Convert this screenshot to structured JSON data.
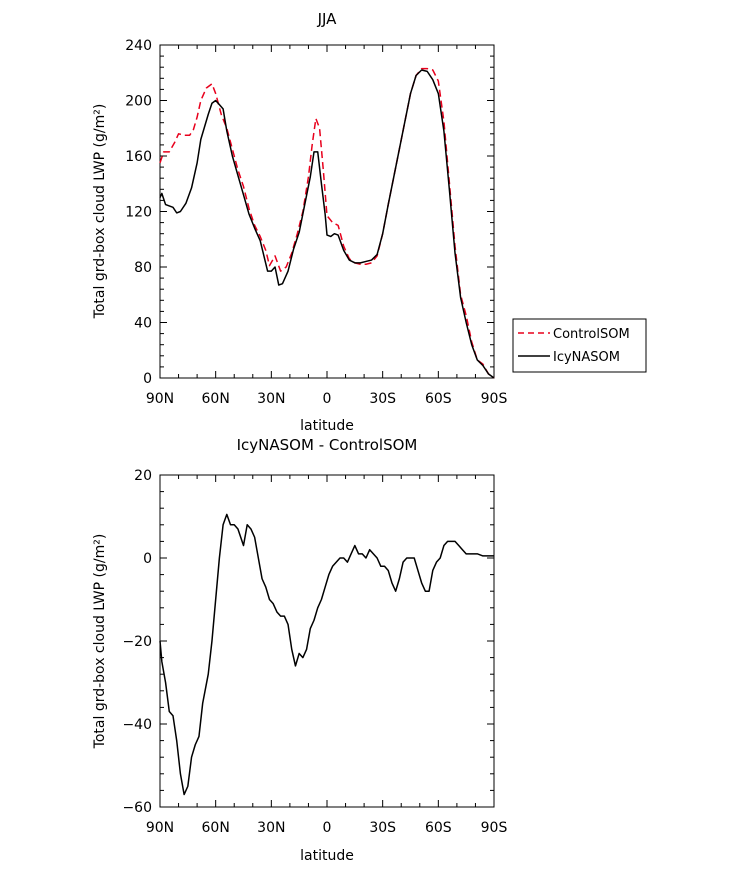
{
  "chart_data": [
    {
      "type": "line",
      "title": "JJA",
      "xlabel": "latitude",
      "ylabel": "Total grd-box cloud LWP (g/m²)",
      "x_tick_labels": [
        "90N",
        "60N",
        "30N",
        "0",
        "30S",
        "60S",
        "90S"
      ],
      "x_tick_values": [
        90,
        60,
        30,
        0,
        -30,
        -60,
        -90
      ],
      "xlim": [
        90,
        -90
      ],
      "ylim": [
        0,
        240
      ],
      "y_ticks": [
        0,
        40,
        80,
        120,
        160,
        200,
        240
      ],
      "grid": false,
      "legend_placement": "right-outside",
      "series": [
        {
          "name": "ControlSOM",
          "color": "#e8001c",
          "dash": "dashed",
          "points": [
            [
              90,
              155
            ],
            [
              88,
              163
            ],
            [
              85,
              163
            ],
            [
              82,
              170
            ],
            [
              80,
              176
            ],
            [
              77,
              175
            ],
            [
              74,
              175
            ],
            [
              72,
              179
            ],
            [
              70,
              188
            ],
            [
              68,
              200
            ],
            [
              65,
              209
            ],
            [
              62,
              212
            ],
            [
              60,
              205
            ],
            [
              57,
              190
            ],
            [
              54,
              180
            ],
            [
              51,
              165
            ],
            [
              48,
              150
            ],
            [
              45,
              138
            ],
            [
              42,
              122
            ],
            [
              39,
              110
            ],
            [
              36,
              102
            ],
            [
              33,
              92
            ],
            [
              31,
              81
            ],
            [
              28,
              88
            ],
            [
              25,
              77
            ],
            [
              22,
              80
            ],
            [
              19,
              90
            ],
            [
              16,
              104
            ],
            [
              13,
              120
            ],
            [
              10,
              145
            ],
            [
              8,
              168
            ],
            [
              6,
              187
            ],
            [
              4,
              180
            ],
            [
              2,
              150
            ],
            [
              0,
              117
            ],
            [
              -3,
              112
            ],
            [
              -6,
              110
            ],
            [
              -9,
              95
            ],
            [
              -12,
              86
            ],
            [
              -15,
              83
            ],
            [
              -18,
              82
            ],
            [
              -21,
              82
            ],
            [
              -24,
              83
            ],
            [
              -27,
              88
            ],
            [
              -30,
              104
            ],
            [
              -33,
              125
            ],
            [
              -36,
              145
            ],
            [
              -39,
              165
            ],
            [
              -42,
              185
            ],
            [
              -45,
              205
            ],
            [
              -48,
              218
            ],
            [
              -51,
              223
            ],
            [
              -54,
              223
            ],
            [
              -57,
              222
            ],
            [
              -60,
              214
            ],
            [
              -63,
              185
            ],
            [
              -66,
              140
            ],
            [
              -69,
              95
            ],
            [
              -72,
              60
            ],
            [
              -75,
              45
            ],
            [
              -78,
              26
            ],
            [
              -81,
              13
            ],
            [
              -84,
              10
            ],
            [
              -87,
              3
            ],
            [
              -90,
              0
            ]
          ]
        },
        {
          "name": "IcyNASOM",
          "color": "#000000",
          "dash": "solid",
          "points": [
            [
              90,
              130
            ],
            [
              89,
              133
            ],
            [
              87,
              125
            ],
            [
              85,
              124
            ],
            [
              83,
              123
            ],
            [
              81,
              119
            ],
            [
              79,
              120
            ],
            [
              76,
              126
            ],
            [
              73,
              137
            ],
            [
              70,
              155
            ],
            [
              68,
              172
            ],
            [
              66,
              181
            ],
            [
              64,
              190
            ],
            [
              62,
              198
            ],
            [
              60,
              200
            ],
            [
              58,
              197
            ],
            [
              56,
              194
            ],
            [
              54,
              178
            ],
            [
              51,
              160
            ],
            [
              48,
              146
            ],
            [
              45,
              132
            ],
            [
              42,
              118
            ],
            [
              39,
              108
            ],
            [
              36,
              99
            ],
            [
              34,
              88
            ],
            [
              32,
              77
            ],
            [
              30,
              77
            ],
            [
              28,
              80
            ],
            [
              26,
              67
            ],
            [
              24,
              68
            ],
            [
              21,
              77
            ],
            [
              18,
              93
            ],
            [
              15,
              105
            ],
            [
              12,
              125
            ],
            [
              9,
              145
            ],
            [
              7,
              163
            ],
            [
              5,
              163
            ],
            [
              3,
              140
            ],
            [
              1,
              118
            ],
            [
              0,
              103
            ],
            [
              -2,
              102
            ],
            [
              -4,
              104
            ],
            [
              -6,
              103
            ],
            [
              -9,
              92
            ],
            [
              -12,
              85
            ],
            [
              -15,
              83
            ],
            [
              -18,
              83
            ],
            [
              -21,
              84
            ],
            [
              -24,
              85
            ],
            [
              -27,
              89
            ],
            [
              -30,
              104
            ],
            [
              -33,
              125
            ],
            [
              -36,
              145
            ],
            [
              -39,
              165
            ],
            [
              -42,
              185
            ],
            [
              -45,
              205
            ],
            [
              -48,
              218
            ],
            [
              -51,
              222
            ],
            [
              -54,
              221
            ],
            [
              -57,
              215
            ],
            [
              -60,
              205
            ],
            [
              -63,
              178
            ],
            [
              -66,
              135
            ],
            [
              -69,
              90
            ],
            [
              -72,
              58
            ],
            [
              -75,
              40
            ],
            [
              -78,
              24
            ],
            [
              -81,
              13
            ],
            [
              -84,
              9
            ],
            [
              -87,
              3
            ],
            [
              -90,
              0
            ]
          ]
        }
      ]
    },
    {
      "type": "line",
      "title": "IcyNASOM - ControlSOM",
      "xlabel": "latitude",
      "ylabel": "Total grd-box cloud LWP (g/m²)",
      "x_tick_labels": [
        "90N",
        "60N",
        "30N",
        "0",
        "30S",
        "60S",
        "90S"
      ],
      "x_tick_values": [
        90,
        60,
        30,
        0,
        -30,
        -60,
        -90
      ],
      "xlim": [
        90,
        -90
      ],
      "ylim": [
        -60,
        20
      ],
      "y_ticks": [
        -60,
        -40,
        -20,
        0,
        20
      ],
      "grid": false,
      "series": [
        {
          "color": "#000000",
          "dash": "solid",
          "points": [
            [
              90,
              -20
            ],
            [
              89,
              -25
            ],
            [
              87,
              -30
            ],
            [
              85,
              -37
            ],
            [
              83,
              -38
            ],
            [
              81,
              -44
            ],
            [
              79,
              -52
            ],
            [
              77,
              -57
            ],
            [
              75,
              -55
            ],
            [
              73,
              -48
            ],
            [
              71,
              -45
            ],
            [
              69,
              -43
            ],
            [
              67,
              -35
            ],
            [
              64,
              -28
            ],
            [
              62,
              -20
            ],
            [
              60,
              -10
            ],
            [
              58,
              0
            ],
            [
              56,
              8
            ],
            [
              54,
              10.5
            ],
            [
              52,
              8
            ],
            [
              50,
              8
            ],
            [
              48,
              7
            ],
            [
              45,
              3
            ],
            [
              43,
              8
            ],
            [
              41,
              7
            ],
            [
              39,
              5
            ],
            [
              37,
              0
            ],
            [
              35,
              -5
            ],
            [
              33,
              -7
            ],
            [
              31,
              -10
            ],
            [
              29,
              -11
            ],
            [
              27,
              -13
            ],
            [
              25,
              -14
            ],
            [
              23,
              -14
            ],
            [
              21,
              -16
            ],
            [
              19,
              -22
            ],
            [
              17,
              -26
            ],
            [
              15,
              -23
            ],
            [
              13,
              -24
            ],
            [
              11,
              -22
            ],
            [
              9,
              -17
            ],
            [
              7,
              -15
            ],
            [
              5,
              -12
            ],
            [
              3,
              -10
            ],
            [
              1,
              -7
            ],
            [
              -1,
              -4
            ],
            [
              -3,
              -2
            ],
            [
              -5,
              -1
            ],
            [
              -7,
              0
            ],
            [
              -9,
              0
            ],
            [
              -11,
              -1
            ],
            [
              -13,
              1
            ],
            [
              -15,
              3
            ],
            [
              -17,
              1
            ],
            [
              -19,
              1
            ],
            [
              -21,
              0
            ],
            [
              -23,
              2
            ],
            [
              -25,
              1
            ],
            [
              -27,
              0
            ],
            [
              -29,
              -2
            ],
            [
              -31,
              -2
            ],
            [
              -33,
              -3
            ],
            [
              -35,
              -6
            ],
            [
              -37,
              -8
            ],
            [
              -39,
              -5
            ],
            [
              -41,
              -1
            ],
            [
              -43,
              0
            ],
            [
              -45,
              0
            ],
            [
              -47,
              0
            ],
            [
              -49,
              -3
            ],
            [
              -51,
              -6
            ],
            [
              -53,
              -8
            ],
            [
              -55,
              -8
            ],
            [
              -57,
              -3
            ],
            [
              -59,
              -1
            ],
            [
              -61,
              0
            ],
            [
              -63,
              3
            ],
            [
              -65,
              4
            ],
            [
              -67,
              4
            ],
            [
              -69,
              4
            ],
            [
              -71,
              3
            ],
            [
              -73,
              2
            ],
            [
              -75,
              1
            ],
            [
              -77,
              1
            ],
            [
              -79,
              1
            ],
            [
              -81,
              1
            ],
            [
              -84,
              0.5
            ],
            [
              -87,
              0.5
            ],
            [
              -90,
              0.5
            ]
          ]
        }
      ]
    }
  ]
}
